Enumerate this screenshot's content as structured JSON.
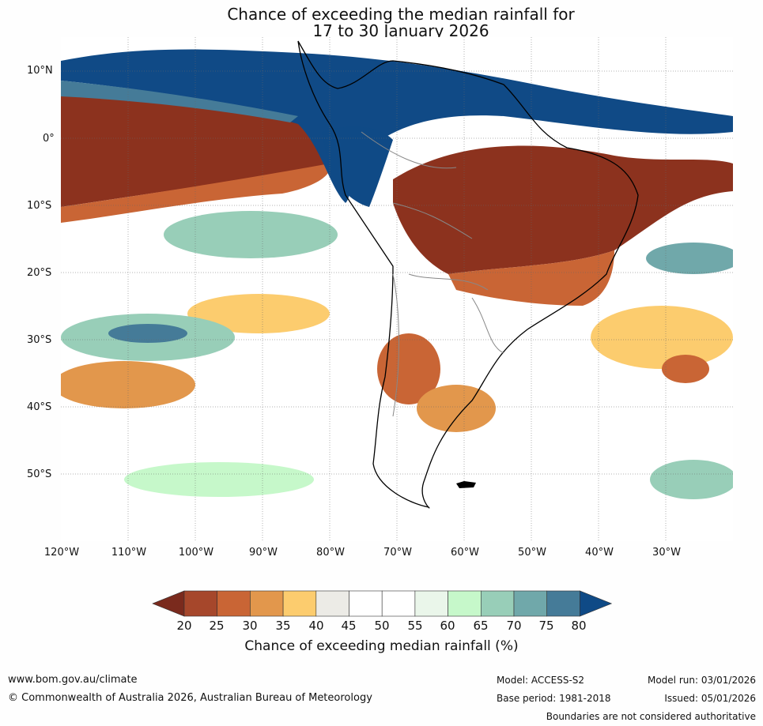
{
  "title": {
    "line1": "Chance of exceeding the median rainfall for",
    "line2": "17 to 30 January 2026"
  },
  "map": {
    "lat_labels": [
      "10°N",
      "0°",
      "10°S",
      "20°S",
      "30°S",
      "40°S",
      "50°S"
    ],
    "lon_labels": [
      "120°W",
      "110°W",
      "100°W",
      "90°W",
      "80°W",
      "70°W",
      "60°W",
      "50°W",
      "40°W",
      "30°W"
    ]
  },
  "colorbar": {
    "ticks": [
      "20",
      "25",
      "30",
      "35",
      "40",
      "45",
      "50",
      "55",
      "60",
      "65",
      "70",
      "75",
      "80"
    ],
    "colors": [
      "#7a2a1d",
      "#a6472b",
      "#c96535",
      "#e2974c",
      "#fccc6e",
      "#ecebe6",
      "#ffffff",
      "#ffffff",
      "#eaf6ea",
      "#c6f8ca",
      "#98ceb8",
      "#70a8aa",
      "#457b98",
      "#0f4a86"
    ],
    "label": "Chance of exceeding median rainfall (%)"
  },
  "footer": {
    "website": "www.bom.gov.au/climate",
    "copyright": "© Commonwealth of Australia 2026, Australian Bureau of Meteorology",
    "model": "Model: ACCESS-S2",
    "base_period": "Base period: 1981-2018",
    "model_run": "Model run: 03/01/2026",
    "issued": "Issued: 05/01/2026",
    "disclaimer": "Boundaries are not considered authoritative"
  }
}
